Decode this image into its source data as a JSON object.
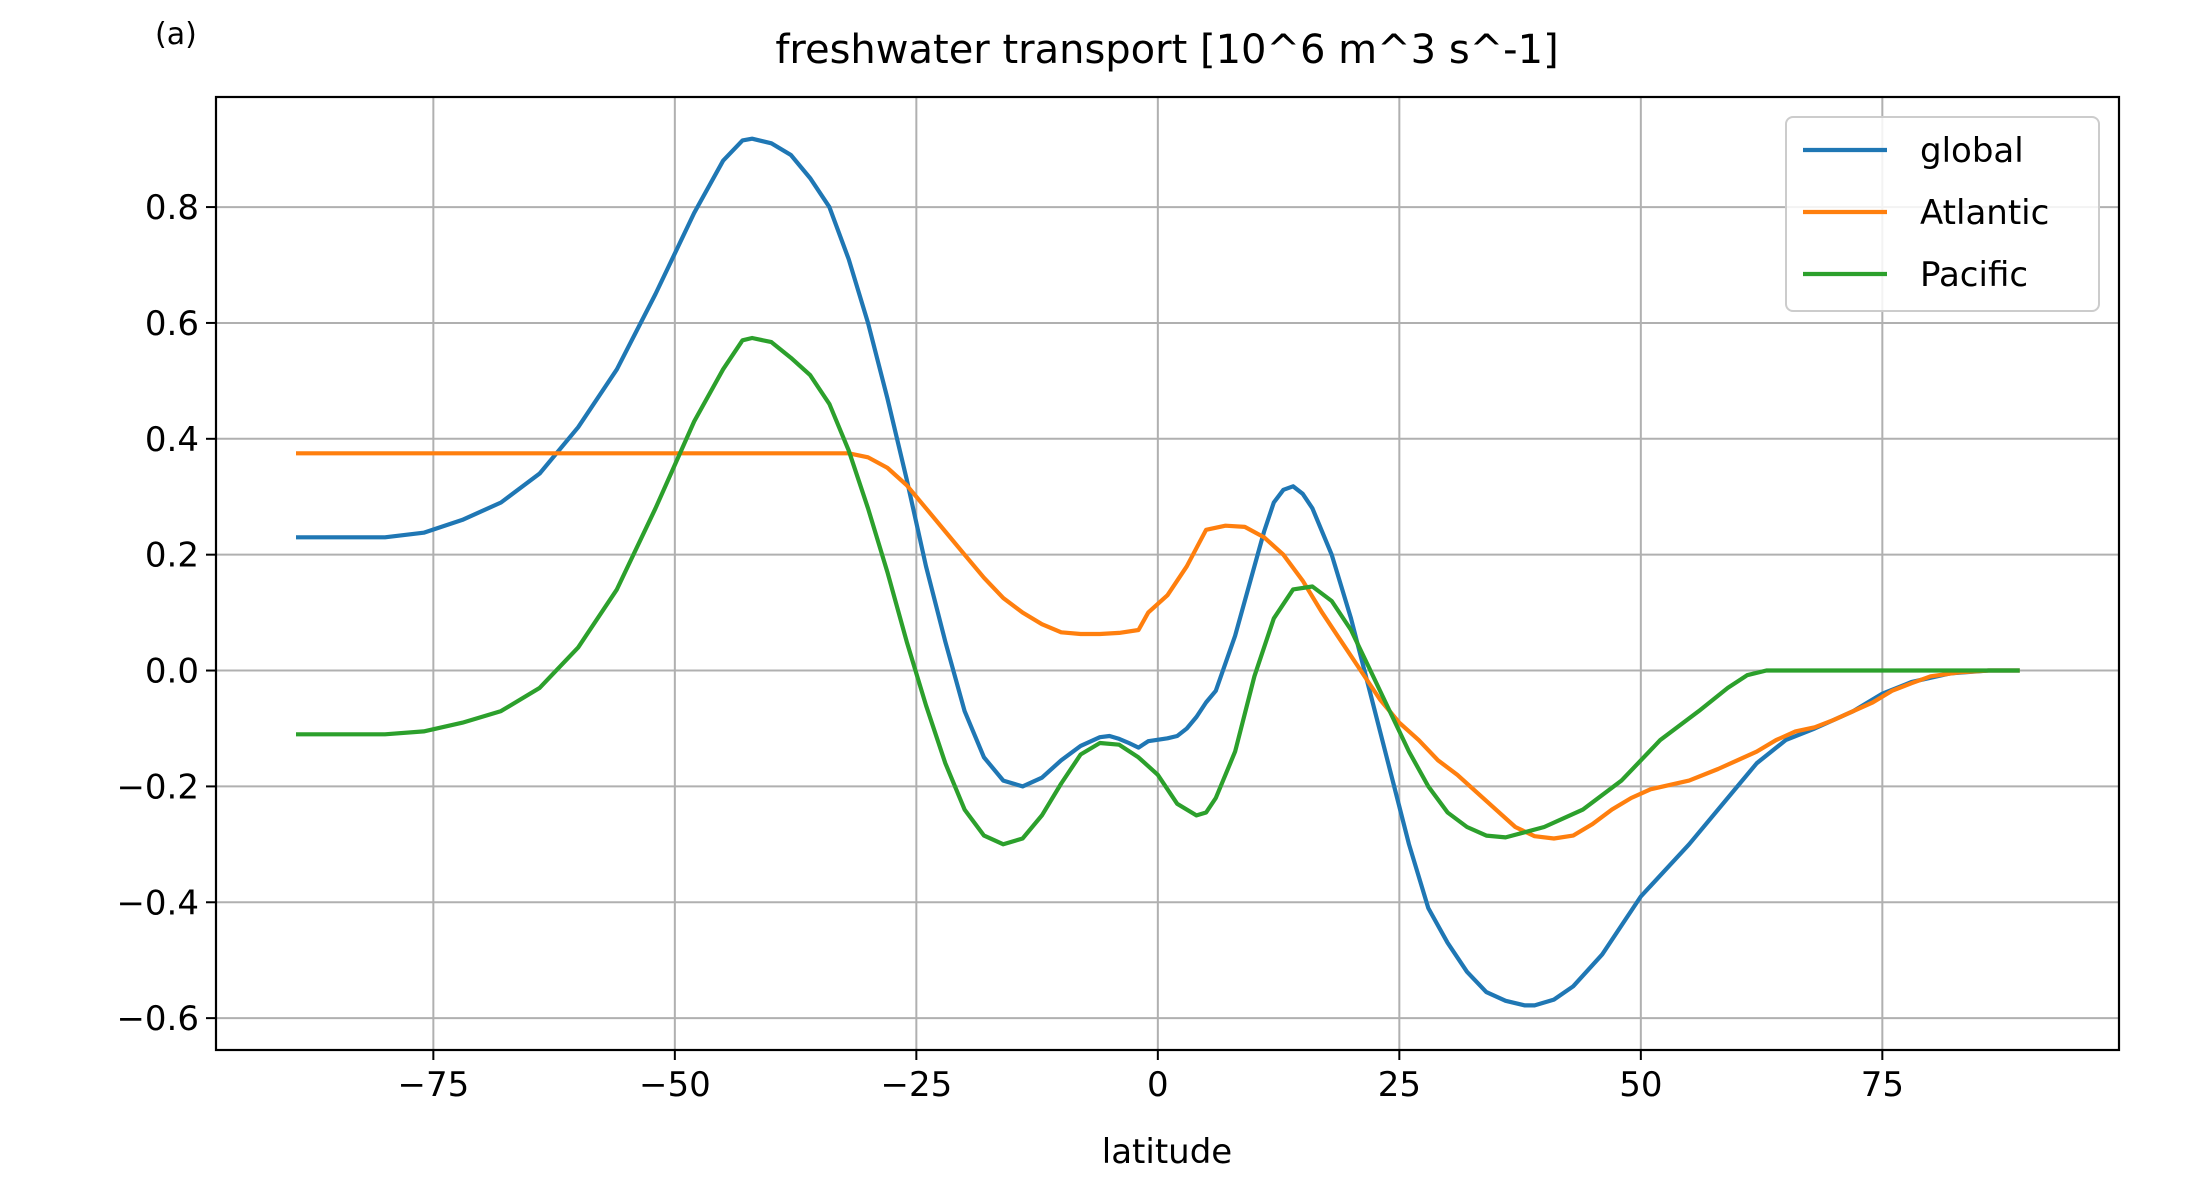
{
  "panel_label": "(a)",
  "chart_data": {
    "type": "line",
    "title": "freshwater transport [10^6 m^3 s^-1]",
    "xlabel": "latitude",
    "ylabel": "",
    "xlim": [
      -97.5,
      99.5
    ],
    "ylim": [
      -0.655,
      0.99
    ],
    "xticks": [
      -75,
      -50,
      -25,
      0,
      25,
      50,
      75
    ],
    "xtick_labels": [
      "−75",
      "−50",
      "−25",
      "0",
      "25",
      "50",
      "75"
    ],
    "yticks": [
      -0.6,
      -0.4,
      -0.2,
      0.0,
      0.2,
      0.4,
      0.6,
      0.8
    ],
    "ytick_labels": [
      "−0.6",
      "−0.4",
      "−0.2",
      "0.0",
      "0.2",
      "0.4",
      "0.6",
      "0.8"
    ],
    "grid": true,
    "legend_position": "top-right",
    "series": [
      {
        "name": "global",
        "color": "#1f77b4",
        "points": [
          [
            -89,
            0.23
          ],
          [
            -80,
            0.23
          ],
          [
            -76,
            0.238
          ],
          [
            -72,
            0.26
          ],
          [
            -68,
            0.29
          ],
          [
            -64,
            0.34
          ],
          [
            -60,
            0.42
          ],
          [
            -56,
            0.52
          ],
          [
            -52,
            0.65
          ],
          [
            -48,
            0.79
          ],
          [
            -45,
            0.88
          ],
          [
            -43,
            0.915
          ],
          [
            -42,
            0.918
          ],
          [
            -40,
            0.91
          ],
          [
            -38,
            0.89
          ],
          [
            -36,
            0.85
          ],
          [
            -34,
            0.8
          ],
          [
            -32,
            0.71
          ],
          [
            -30,
            0.6
          ],
          [
            -28,
            0.47
          ],
          [
            -26,
            0.33
          ],
          [
            -24,
            0.18
          ],
          [
            -22,
            0.05
          ],
          [
            -20,
            -0.07
          ],
          [
            -18,
            -0.15
          ],
          [
            -16,
            -0.19
          ],
          [
            -14,
            -0.2
          ],
          [
            -12,
            -0.185
          ],
          [
            -10,
            -0.155
          ],
          [
            -8,
            -0.13
          ],
          [
            -6,
            -0.115
          ],
          [
            -5,
            -0.113
          ],
          [
            -4,
            -0.118
          ],
          [
            -3,
            -0.125
          ],
          [
            -2,
            -0.133
          ],
          [
            -1,
            -0.122
          ],
          [
            1,
            -0.117
          ],
          [
            2,
            -0.113
          ],
          [
            3,
            -0.1
          ],
          [
            4,
            -0.08
          ],
          [
            5,
            -0.055
          ],
          [
            6,
            -0.035
          ],
          [
            8,
            0.06
          ],
          [
            10,
            0.18
          ],
          [
            11,
            0.24
          ],
          [
            12,
            0.29
          ],
          [
            13,
            0.312
          ],
          [
            14,
            0.318
          ],
          [
            15,
            0.305
          ],
          [
            16,
            0.28
          ],
          [
            18,
            0.2
          ],
          [
            20,
            0.09
          ],
          [
            22,
            -0.04
          ],
          [
            24,
            -0.17
          ],
          [
            26,
            -0.3
          ],
          [
            28,
            -0.41
          ],
          [
            30,
            -0.47
          ],
          [
            32,
            -0.52
          ],
          [
            34,
            -0.555
          ],
          [
            36,
            -0.57
          ],
          [
            38,
            -0.578
          ],
          [
            39,
            -0.578
          ],
          [
            41,
            -0.568
          ],
          [
            43,
            -0.545
          ],
          [
            46,
            -0.49
          ],
          [
            50,
            -0.39
          ],
          [
            55,
            -0.3
          ],
          [
            60,
            -0.2
          ],
          [
            62,
            -0.16
          ],
          [
            65,
            -0.12
          ],
          [
            68,
            -0.1
          ],
          [
            72,
            -0.07
          ],
          [
            75,
            -0.04
          ],
          [
            78,
            -0.02
          ],
          [
            82,
            -0.005
          ],
          [
            86,
            0.0
          ],
          [
            89,
            0.0
          ]
        ]
      },
      {
        "name": "Atlantic",
        "color": "#ff7f0e",
        "points": [
          [
            -89,
            0.375
          ],
          [
            -80,
            0.375
          ],
          [
            -70,
            0.375
          ],
          [
            -60,
            0.375
          ],
          [
            -50,
            0.375
          ],
          [
            -40,
            0.375
          ],
          [
            -32,
            0.375
          ],
          [
            -30,
            0.368
          ],
          [
            -28,
            0.35
          ],
          [
            -26,
            0.32
          ],
          [
            -24,
            0.28
          ],
          [
            -22,
            0.24
          ],
          [
            -20,
            0.2
          ],
          [
            -18,
            0.16
          ],
          [
            -16,
            0.125
          ],
          [
            -14,
            0.1
          ],
          [
            -12,
            0.08
          ],
          [
            -10,
            0.066
          ],
          [
            -8,
            0.063
          ],
          [
            -6,
            0.063
          ],
          [
            -4,
            0.065
          ],
          [
            -2,
            0.07
          ],
          [
            -1,
            0.1
          ],
          [
            1,
            0.13
          ],
          [
            3,
            0.18
          ],
          [
            5,
            0.243
          ],
          [
            7,
            0.25
          ],
          [
            9,
            0.248
          ],
          [
            11,
            0.23
          ],
          [
            13,
            0.2
          ],
          [
            15,
            0.155
          ],
          [
            17,
            0.1
          ],
          [
            19,
            0.05
          ],
          [
            21,
            0.0
          ],
          [
            23,
            -0.05
          ],
          [
            25,
            -0.09
          ],
          [
            27,
            -0.12
          ],
          [
            29,
            -0.155
          ],
          [
            31,
            -0.18
          ],
          [
            33,
            -0.21
          ],
          [
            35,
            -0.24
          ],
          [
            37,
            -0.27
          ],
          [
            39,
            -0.286
          ],
          [
            41,
            -0.29
          ],
          [
            43,
            -0.285
          ],
          [
            45,
            -0.265
          ],
          [
            47,
            -0.24
          ],
          [
            49,
            -0.22
          ],
          [
            51,
            -0.205
          ],
          [
            55,
            -0.19
          ],
          [
            58,
            -0.17
          ],
          [
            60,
            -0.155
          ],
          [
            62,
            -0.14
          ],
          [
            64,
            -0.12
          ],
          [
            66,
            -0.105
          ],
          [
            68,
            -0.098
          ],
          [
            70,
            -0.085
          ],
          [
            72,
            -0.07
          ],
          [
            74,
            -0.055
          ],
          [
            76,
            -0.035
          ],
          [
            78,
            -0.022
          ],
          [
            80,
            -0.01
          ],
          [
            83,
            -0.003
          ],
          [
            86,
            0.0
          ],
          [
            89,
            0.0
          ]
        ]
      },
      {
        "name": "Pacific",
        "color": "#2ca02c",
        "points": [
          [
            -89,
            -0.11
          ],
          [
            -80,
            -0.11
          ],
          [
            -76,
            -0.105
          ],
          [
            -72,
            -0.09
          ],
          [
            -68,
            -0.07
          ],
          [
            -64,
            -0.03
          ],
          [
            -60,
            0.04
          ],
          [
            -56,
            0.14
          ],
          [
            -52,
            0.28
          ],
          [
            -48,
            0.43
          ],
          [
            -45,
            0.52
          ],
          [
            -43,
            0.57
          ],
          [
            -42,
            0.574
          ],
          [
            -40,
            0.567
          ],
          [
            -38,
            0.54
          ],
          [
            -36,
            0.51
          ],
          [
            -34,
            0.46
          ],
          [
            -32,
            0.38
          ],
          [
            -30,
            0.28
          ],
          [
            -28,
            0.17
          ],
          [
            -26,
            0.05
          ],
          [
            -24,
            -0.06
          ],
          [
            -22,
            -0.16
          ],
          [
            -20,
            -0.24
          ],
          [
            -18,
            -0.285
          ],
          [
            -16,
            -0.3
          ],
          [
            -14,
            -0.29
          ],
          [
            -12,
            -0.25
          ],
          [
            -10,
            -0.195
          ],
          [
            -8,
            -0.145
          ],
          [
            -6,
            -0.125
          ],
          [
            -4,
            -0.128
          ],
          [
            -2,
            -0.15
          ],
          [
            0,
            -0.18
          ],
          [
            2,
            -0.23
          ],
          [
            4,
            -0.25
          ],
          [
            5,
            -0.245
          ],
          [
            6,
            -0.22
          ],
          [
            8,
            -0.14
          ],
          [
            10,
            -0.01
          ],
          [
            12,
            0.09
          ],
          [
            14,
            0.14
          ],
          [
            16,
            0.145
          ],
          [
            18,
            0.12
          ],
          [
            20,
            0.07
          ],
          [
            22,
            0.0
          ],
          [
            24,
            -0.07
          ],
          [
            26,
            -0.14
          ],
          [
            28,
            -0.2
          ],
          [
            30,
            -0.245
          ],
          [
            32,
            -0.27
          ],
          [
            34,
            -0.285
          ],
          [
            36,
            -0.288
          ],
          [
            40,
            -0.27
          ],
          [
            44,
            -0.24
          ],
          [
            48,
            -0.19
          ],
          [
            52,
            -0.12
          ],
          [
            56,
            -0.07
          ],
          [
            59,
            -0.03
          ],
          [
            61,
            -0.008
          ],
          [
            63,
            0.0
          ],
          [
            70,
            0.0
          ],
          [
            80,
            0.0
          ],
          [
            89,
            0.0
          ]
        ]
      }
    ]
  }
}
